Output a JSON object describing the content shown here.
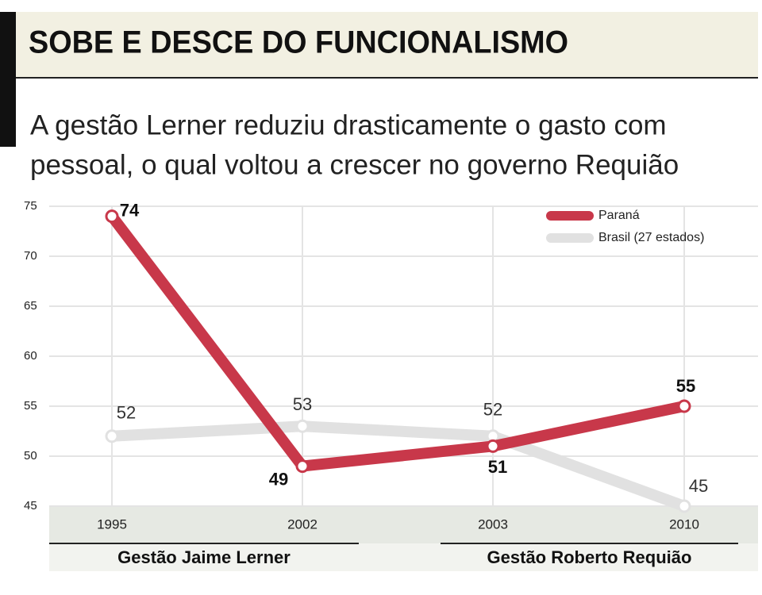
{
  "chart_data": {
    "type": "line",
    "title": "SOBE E DESCE DO FUNCIONALISMO",
    "subtitle": [
      "A gestão Lerner reduziu drasticamente o gasto com",
      "pessoal, o qual voltou a crescer no governo Requião"
    ],
    "categories": [
      "1995",
      "2002",
      "2003",
      "2010"
    ],
    "series": [
      {
        "name": "Brasil (27 estados)",
        "color": "#e1e1e1",
        "values": [
          52,
          53,
          52,
          45
        ]
      },
      {
        "name": "Paraná",
        "color": "#c8384a",
        "values": [
          74,
          49,
          51,
          55
        ]
      }
    ],
    "ylim": [
      45,
      75
    ],
    "yticks": [
      45,
      50,
      55,
      60,
      65,
      70,
      75
    ],
    "grid": true,
    "legend": "top-right",
    "groups": [
      "Gestão Jaime Lerner",
      "Gestão Roberto Requião"
    ]
  }
}
